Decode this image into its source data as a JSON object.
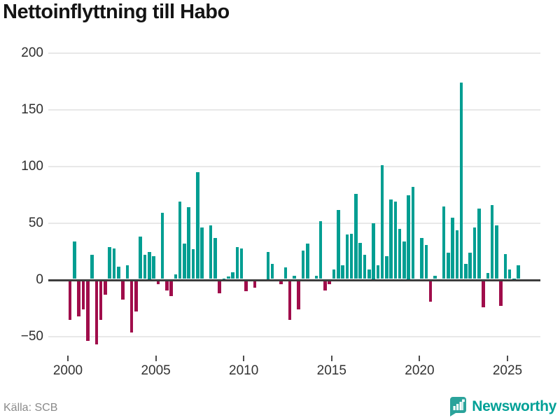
{
  "title": "Nettoinflyttning till Habo",
  "footer": {
    "source_label": "Källa: SCB",
    "brand_name": "Newsworthy"
  },
  "colors": {
    "positive_bar": "#009E92",
    "negative_bar": "#A00D4B",
    "zero_line": "#3d3d3d",
    "gridline": "#e8e8e8",
    "brand_teal": "#2BA39B"
  },
  "chart_data": {
    "type": "bar",
    "title": "Nettoinflyttning till Habo",
    "xlabel": "",
    "ylabel": "",
    "ylim": [
      -75,
      210
    ],
    "grid": true,
    "legend": "none",
    "yticks": [
      200,
      150,
      100,
      50,
      0,
      -50
    ],
    "ytick_labels": [
      "200",
      "150",
      "100",
      "50",
      "0",
      "−50"
    ],
    "xticks": [
      2000,
      2005,
      2010,
      2015,
      2020,
      2025
    ],
    "xtick_labels": [
      "2000",
      "2005",
      "2010",
      "2015",
      "2020",
      "2025"
    ],
    "x": [
      "2000Q1",
      "2000Q2",
      "2000Q3",
      "2000Q4",
      "2001Q1",
      "2001Q2",
      "2001Q3",
      "2001Q4",
      "2002Q1",
      "2002Q2",
      "2002Q3",
      "2002Q4",
      "2003Q1",
      "2003Q2",
      "2003Q3",
      "2003Q4",
      "2004Q1",
      "2004Q2",
      "2004Q3",
      "2004Q4",
      "2005Q1",
      "2005Q2",
      "2005Q3",
      "2005Q4",
      "2006Q1",
      "2006Q2",
      "2006Q3",
      "2006Q4",
      "2007Q1",
      "2007Q2",
      "2007Q3",
      "2007Q4",
      "2008Q1",
      "2008Q2",
      "2008Q3",
      "2008Q4",
      "2009Q1",
      "2009Q2",
      "2009Q3",
      "2009Q4",
      "2010Q1",
      "2010Q2",
      "2010Q3",
      "2010Q4",
      "2011Q1",
      "2011Q2",
      "2011Q3",
      "2011Q4",
      "2012Q1",
      "2012Q2",
      "2012Q3",
      "2012Q4",
      "2013Q1",
      "2013Q2",
      "2013Q3",
      "2013Q4",
      "2014Q1",
      "2014Q2",
      "2014Q3",
      "2014Q4",
      "2015Q1",
      "2015Q2",
      "2015Q3",
      "2015Q4",
      "2016Q1",
      "2016Q2",
      "2016Q3",
      "2016Q4",
      "2017Q1",
      "2017Q2",
      "2017Q3",
      "2017Q4",
      "2018Q1",
      "2018Q2",
      "2018Q3",
      "2018Q4",
      "2019Q1",
      "2019Q2",
      "2019Q3",
      "2019Q4",
      "2020Q1",
      "2020Q2",
      "2020Q3",
      "2020Q4",
      "2021Q1",
      "2021Q2",
      "2021Q3",
      "2021Q4",
      "2022Q1",
      "2022Q2",
      "2022Q3",
      "2022Q4",
      "2023Q1",
      "2023Q2",
      "2023Q3",
      "2023Q4",
      "2024Q1",
      "2024Q2",
      "2024Q3",
      "2024Q4",
      "2025Q1",
      "2025Q2",
      "2025Q3"
    ],
    "values": [
      -35,
      34,
      -32,
      -26,
      -54,
      22,
      -57,
      -35,
      -13,
      29,
      28,
      12,
      -17,
      13,
      -46,
      -28,
      38,
      22,
      25,
      21,
      -4,
      59,
      -9,
      -14,
      5,
      69,
      32,
      64,
      27,
      95,
      46,
      0,
      48,
      37,
      -12,
      1,
      3,
      7,
      29,
      28,
      -10,
      0,
      -7,
      0,
      0,
      25,
      14,
      0,
      -4,
      11,
      -35,
      4,
      -26,
      26,
      32,
      0,
      4,
      52,
      -9,
      -4,
      9,
      62,
      13,
      40,
      41,
      76,
      33,
      22,
      9,
      50,
      13,
      101,
      21,
      71,
      69,
      45,
      34,
      75,
      82,
      0,
      37,
      31,
      -19,
      4,
      0,
      65,
      24,
      55,
      44,
      174,
      14,
      24,
      46,
      63,
      -24,
      6,
      66,
      48,
      -23,
      23,
      9,
      1,
      13
    ]
  }
}
